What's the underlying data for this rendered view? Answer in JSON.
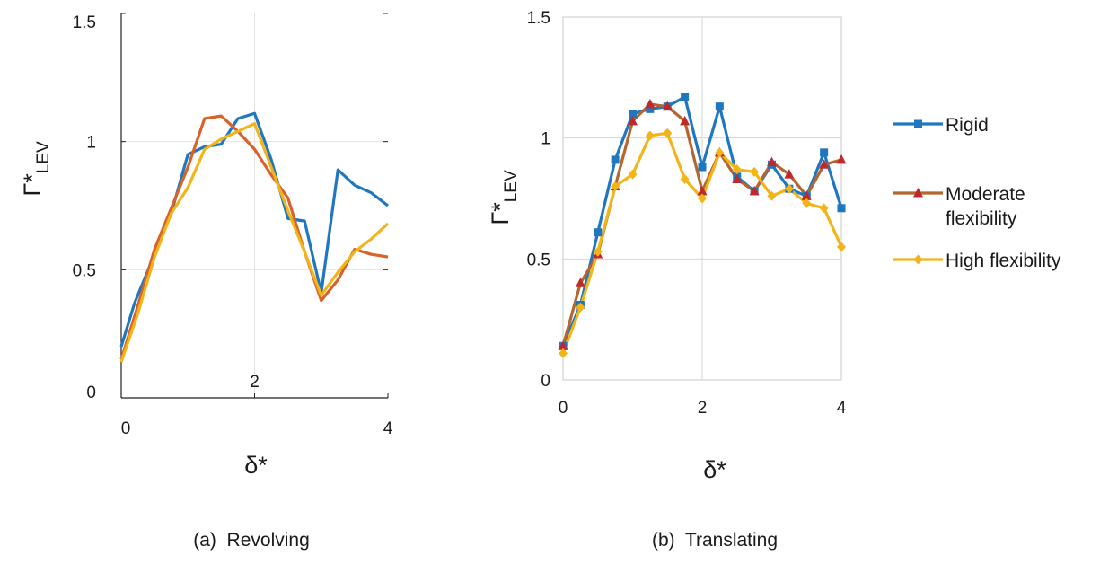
{
  "chart_data": [
    {
      "type": "line",
      "caption": "(a)  Revolving",
      "xlabel": "δ*",
      "ylabel": {
        "base": "Γ*",
        "sub": "LEV"
      },
      "xlim": [
        0,
        4
      ],
      "ylim": [
        0,
        1.5
      ],
      "x_ticks": [
        "0",
        "2",
        "4"
      ],
      "y_ticks": [
        "0",
        "0.5",
        "1",
        "1.5"
      ],
      "grid": true,
      "series": [
        {
          "name": "Rigid",
          "color": "#1f77c0",
          "x": [
            0.0,
            0.2,
            0.5,
            0.75,
            1.0,
            1.25,
            1.5,
            1.75,
            2.0,
            2.25,
            2.5,
            2.75,
            3.0,
            3.25,
            3.5,
            3.75,
            4.0
          ],
          "y": [
            0.2,
            0.37,
            0.56,
            0.72,
            0.95,
            0.98,
            0.99,
            1.09,
            1.11,
            0.93,
            0.7,
            0.69,
            0.41,
            0.89,
            0.83,
            0.8,
            0.75
          ]
        },
        {
          "name": "Moderate flexibility",
          "color": "#d9622b",
          "x": [
            0.0,
            0.25,
            0.5,
            0.75,
            1.0,
            1.25,
            1.5,
            1.75,
            2.0,
            2.25,
            2.5,
            2.75,
            3.0,
            3.25,
            3.5,
            3.75,
            4.0
          ],
          "y": [
            0.15,
            0.36,
            0.58,
            0.74,
            0.9,
            1.09,
            1.1,
            1.04,
            0.97,
            0.87,
            0.78,
            0.57,
            0.38,
            0.46,
            0.58,
            0.56,
            0.55
          ]
        },
        {
          "name": "High flexibility",
          "color": "#f2b417",
          "x": [
            0.0,
            0.25,
            0.5,
            0.75,
            1.0,
            1.25,
            1.5,
            1.75,
            2.0,
            2.25,
            2.5,
            2.75,
            3.0,
            3.25,
            3.5,
            3.75,
            4.0
          ],
          "y": [
            0.14,
            0.33,
            0.55,
            0.72,
            0.82,
            0.97,
            1.01,
            1.04,
            1.07,
            0.9,
            0.73,
            0.57,
            0.4,
            0.49,
            0.57,
            0.62,
            0.68
          ]
        }
      ]
    },
    {
      "type": "line",
      "caption": "(b)  Translating",
      "xlabel": "δ*",
      "ylabel": {
        "base": "Γ*",
        "sub": "LEV"
      },
      "xlim": [
        0,
        4
      ],
      "ylim": [
        0,
        1.5
      ],
      "x_ticks": [
        "0",
        "2",
        "4"
      ],
      "y_ticks": [
        "0",
        "0.5",
        "1",
        "1.5"
      ],
      "grid": true,
      "legend": "right",
      "series": [
        {
          "name": "Rigid",
          "color": "#1f77c0",
          "marker": "square",
          "x": [
            0.0,
            0.25,
            0.5,
            0.75,
            1.0,
            1.25,
            1.5,
            1.75,
            2.0,
            2.25,
            2.5,
            2.75,
            3.0,
            3.25,
            3.5,
            3.75,
            4.0
          ],
          "y": [
            0.14,
            0.31,
            0.61,
            0.91,
            1.1,
            1.12,
            1.13,
            1.17,
            0.88,
            1.13,
            0.84,
            0.78,
            0.89,
            0.79,
            0.76,
            0.94,
            0.71
          ]
        },
        {
          "name": "Moderate flexibility",
          "color": "#c0282b",
          "line_color": "#b5652e",
          "marker": "triangle",
          "x": [
            0.0,
            0.25,
            0.5,
            0.75,
            1.0,
            1.25,
            1.5,
            1.75,
            2.0,
            2.25,
            2.5,
            2.75,
            3.0,
            3.25,
            3.5,
            3.75,
            4.0
          ],
          "y": [
            0.14,
            0.4,
            0.52,
            0.8,
            1.07,
            1.14,
            1.13,
            1.07,
            0.78,
            0.94,
            0.83,
            0.78,
            0.9,
            0.85,
            0.76,
            0.89,
            0.91
          ]
        },
        {
          "name": "High flexibility",
          "color": "#f2b417",
          "marker": "diamond",
          "x": [
            0.0,
            0.25,
            0.5,
            0.75,
            1.0,
            1.25,
            1.5,
            1.75,
            2.0,
            2.25,
            2.5,
            2.75,
            3.0,
            3.25,
            3.5,
            3.75,
            4.0
          ],
          "y": [
            0.11,
            0.3,
            0.53,
            0.8,
            0.85,
            1.01,
            1.02,
            0.83,
            0.75,
            0.94,
            0.87,
            0.86,
            0.76,
            0.79,
            0.73,
            0.71,
            0.55
          ]
        }
      ]
    }
  ],
  "legend": {
    "items": [
      {
        "label_lines": [
          "Rigid"
        ]
      },
      {
        "label_lines": [
          "Moderate",
          "flexibility"
        ]
      },
      {
        "label_lines": [
          "High flexibility"
        ]
      }
    ]
  }
}
